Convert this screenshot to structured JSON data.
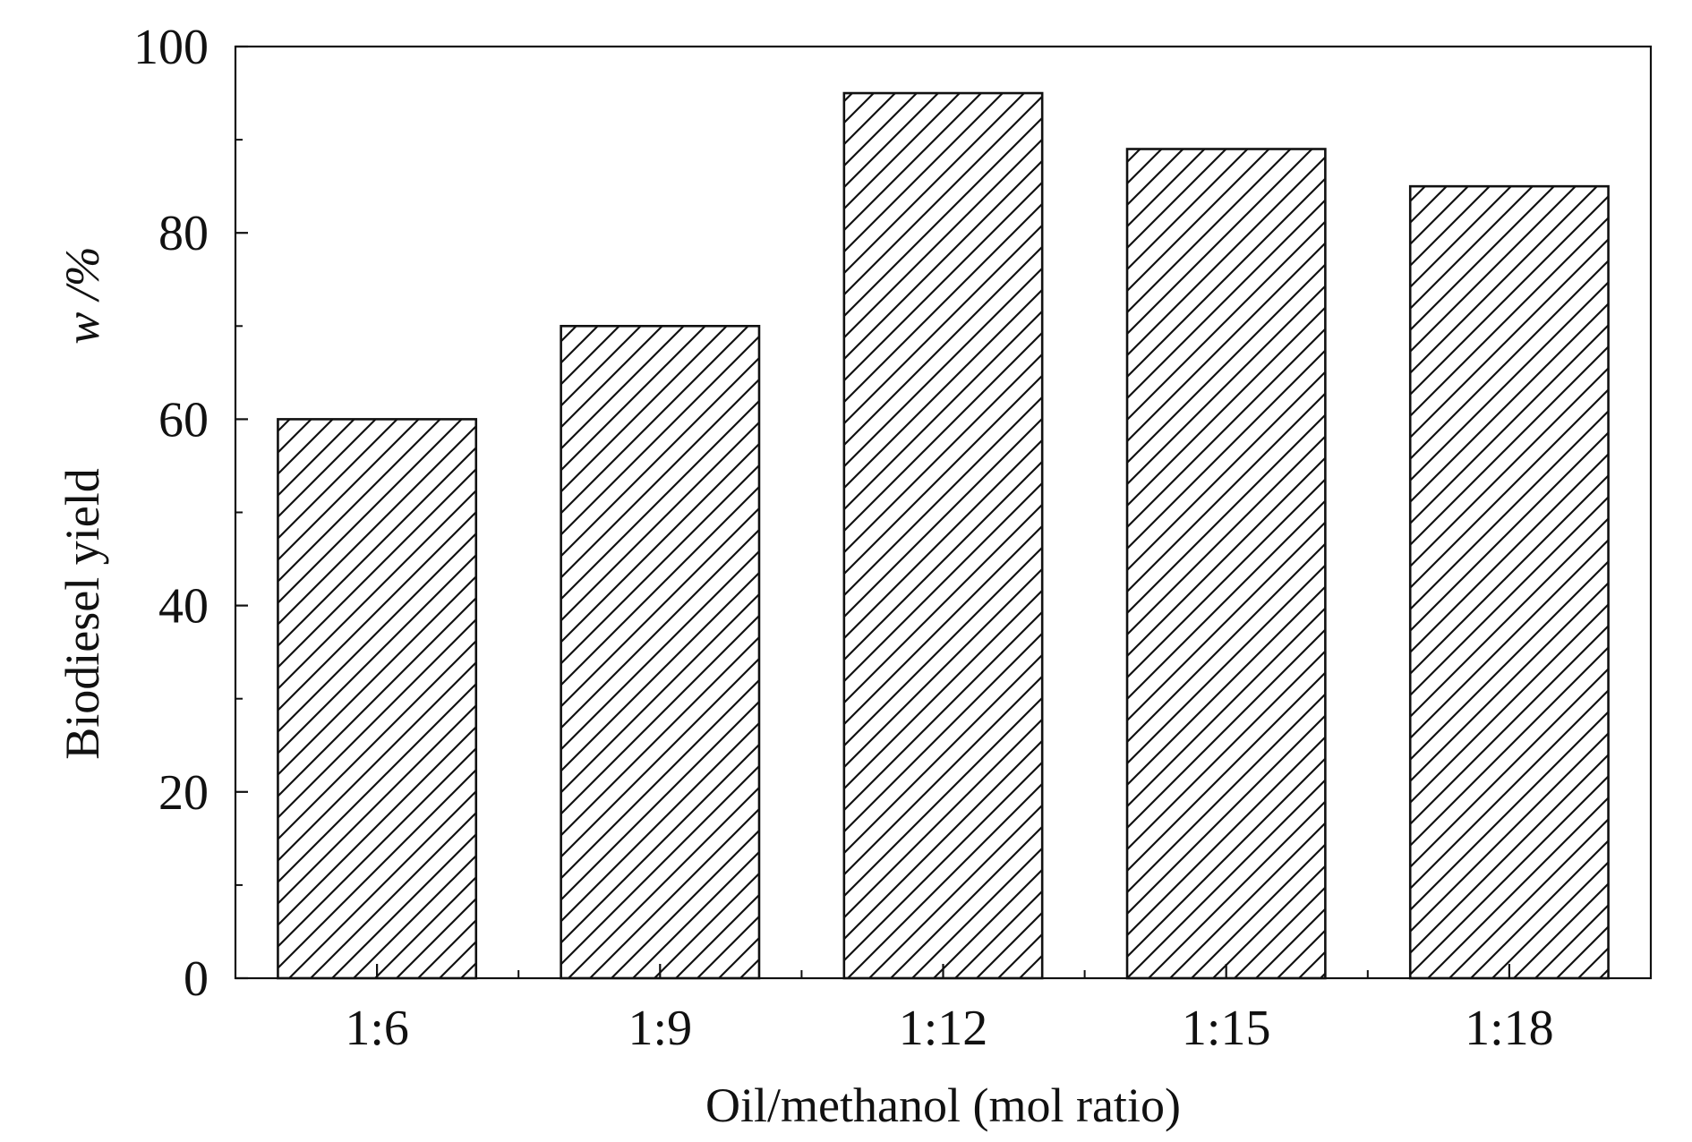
{
  "chart_data": {
    "type": "bar",
    "categories": [
      "1:6",
      "1:9",
      "1:12",
      "1:15",
      "1:18"
    ],
    "values": [
      60,
      70,
      95,
      89,
      85
    ],
    "xlabel": "Oil/methanol (mol ratio)",
    "ylabel": "Biodiesel yield",
    "ylabel_unit": "w /%",
    "ylim": [
      0,
      100
    ],
    "yticks": [
      0,
      20,
      40,
      60,
      80,
      100
    ],
    "grid": false,
    "bar_fill": "diagonal-hatch",
    "colors": {
      "ink": "#111111",
      "background": "#ffffff"
    }
  }
}
